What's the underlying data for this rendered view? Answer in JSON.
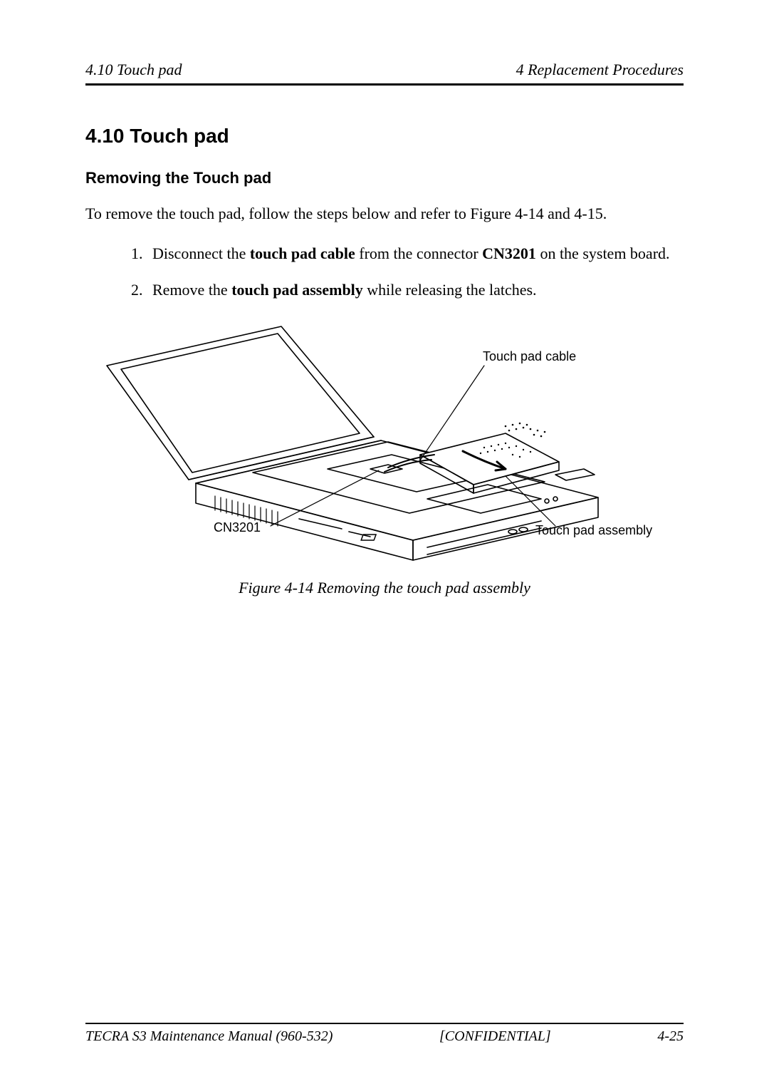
{
  "header": {
    "left": "4.10  Touch pad",
    "right": "4 Replacement Procedures"
  },
  "section": {
    "number": "4.10",
    "title": "Touch pad",
    "full_title": "4.10  Touch pad"
  },
  "subsection": {
    "title": "Removing the Touch pad"
  },
  "intro": {
    "text": "To remove the touch pad, follow the steps below and refer to Figure 4-14 and 4-15."
  },
  "steps": [
    {
      "parts": [
        {
          "text": "Disconnect the ",
          "bold": false
        },
        {
          "text": "touch pad cable",
          "bold": true
        },
        {
          "text": " from the connector ",
          "bold": false
        },
        {
          "text": "CN3201",
          "bold": true
        },
        {
          "text": " on the system board.",
          "bold": false
        }
      ]
    },
    {
      "parts": [
        {
          "text": "Remove the ",
          "bold": false
        },
        {
          "text": "touch pad assembly",
          "bold": true
        },
        {
          "text": " while releasing the latches.",
          "bold": false
        }
      ]
    }
  ],
  "figure": {
    "callouts": {
      "touch_pad_cable": "Touch pad cable",
      "cn3201": "CN3201",
      "touch_pad_assembly": "Touch pad assembly"
    },
    "caption": "Figure 4-14   Removing the touch pad assembly",
    "diagram": {
      "stroke": "#000000",
      "stroke_width": 1.6,
      "fill": "#ffffff"
    }
  },
  "footer": {
    "left": "TECRA S3 Maintenance Manual (960-532)",
    "center": "[CONFIDENTIAL]",
    "right": "4-25"
  },
  "colors": {
    "text": "#000000",
    "background": "#ffffff",
    "rule": "#000000"
  }
}
